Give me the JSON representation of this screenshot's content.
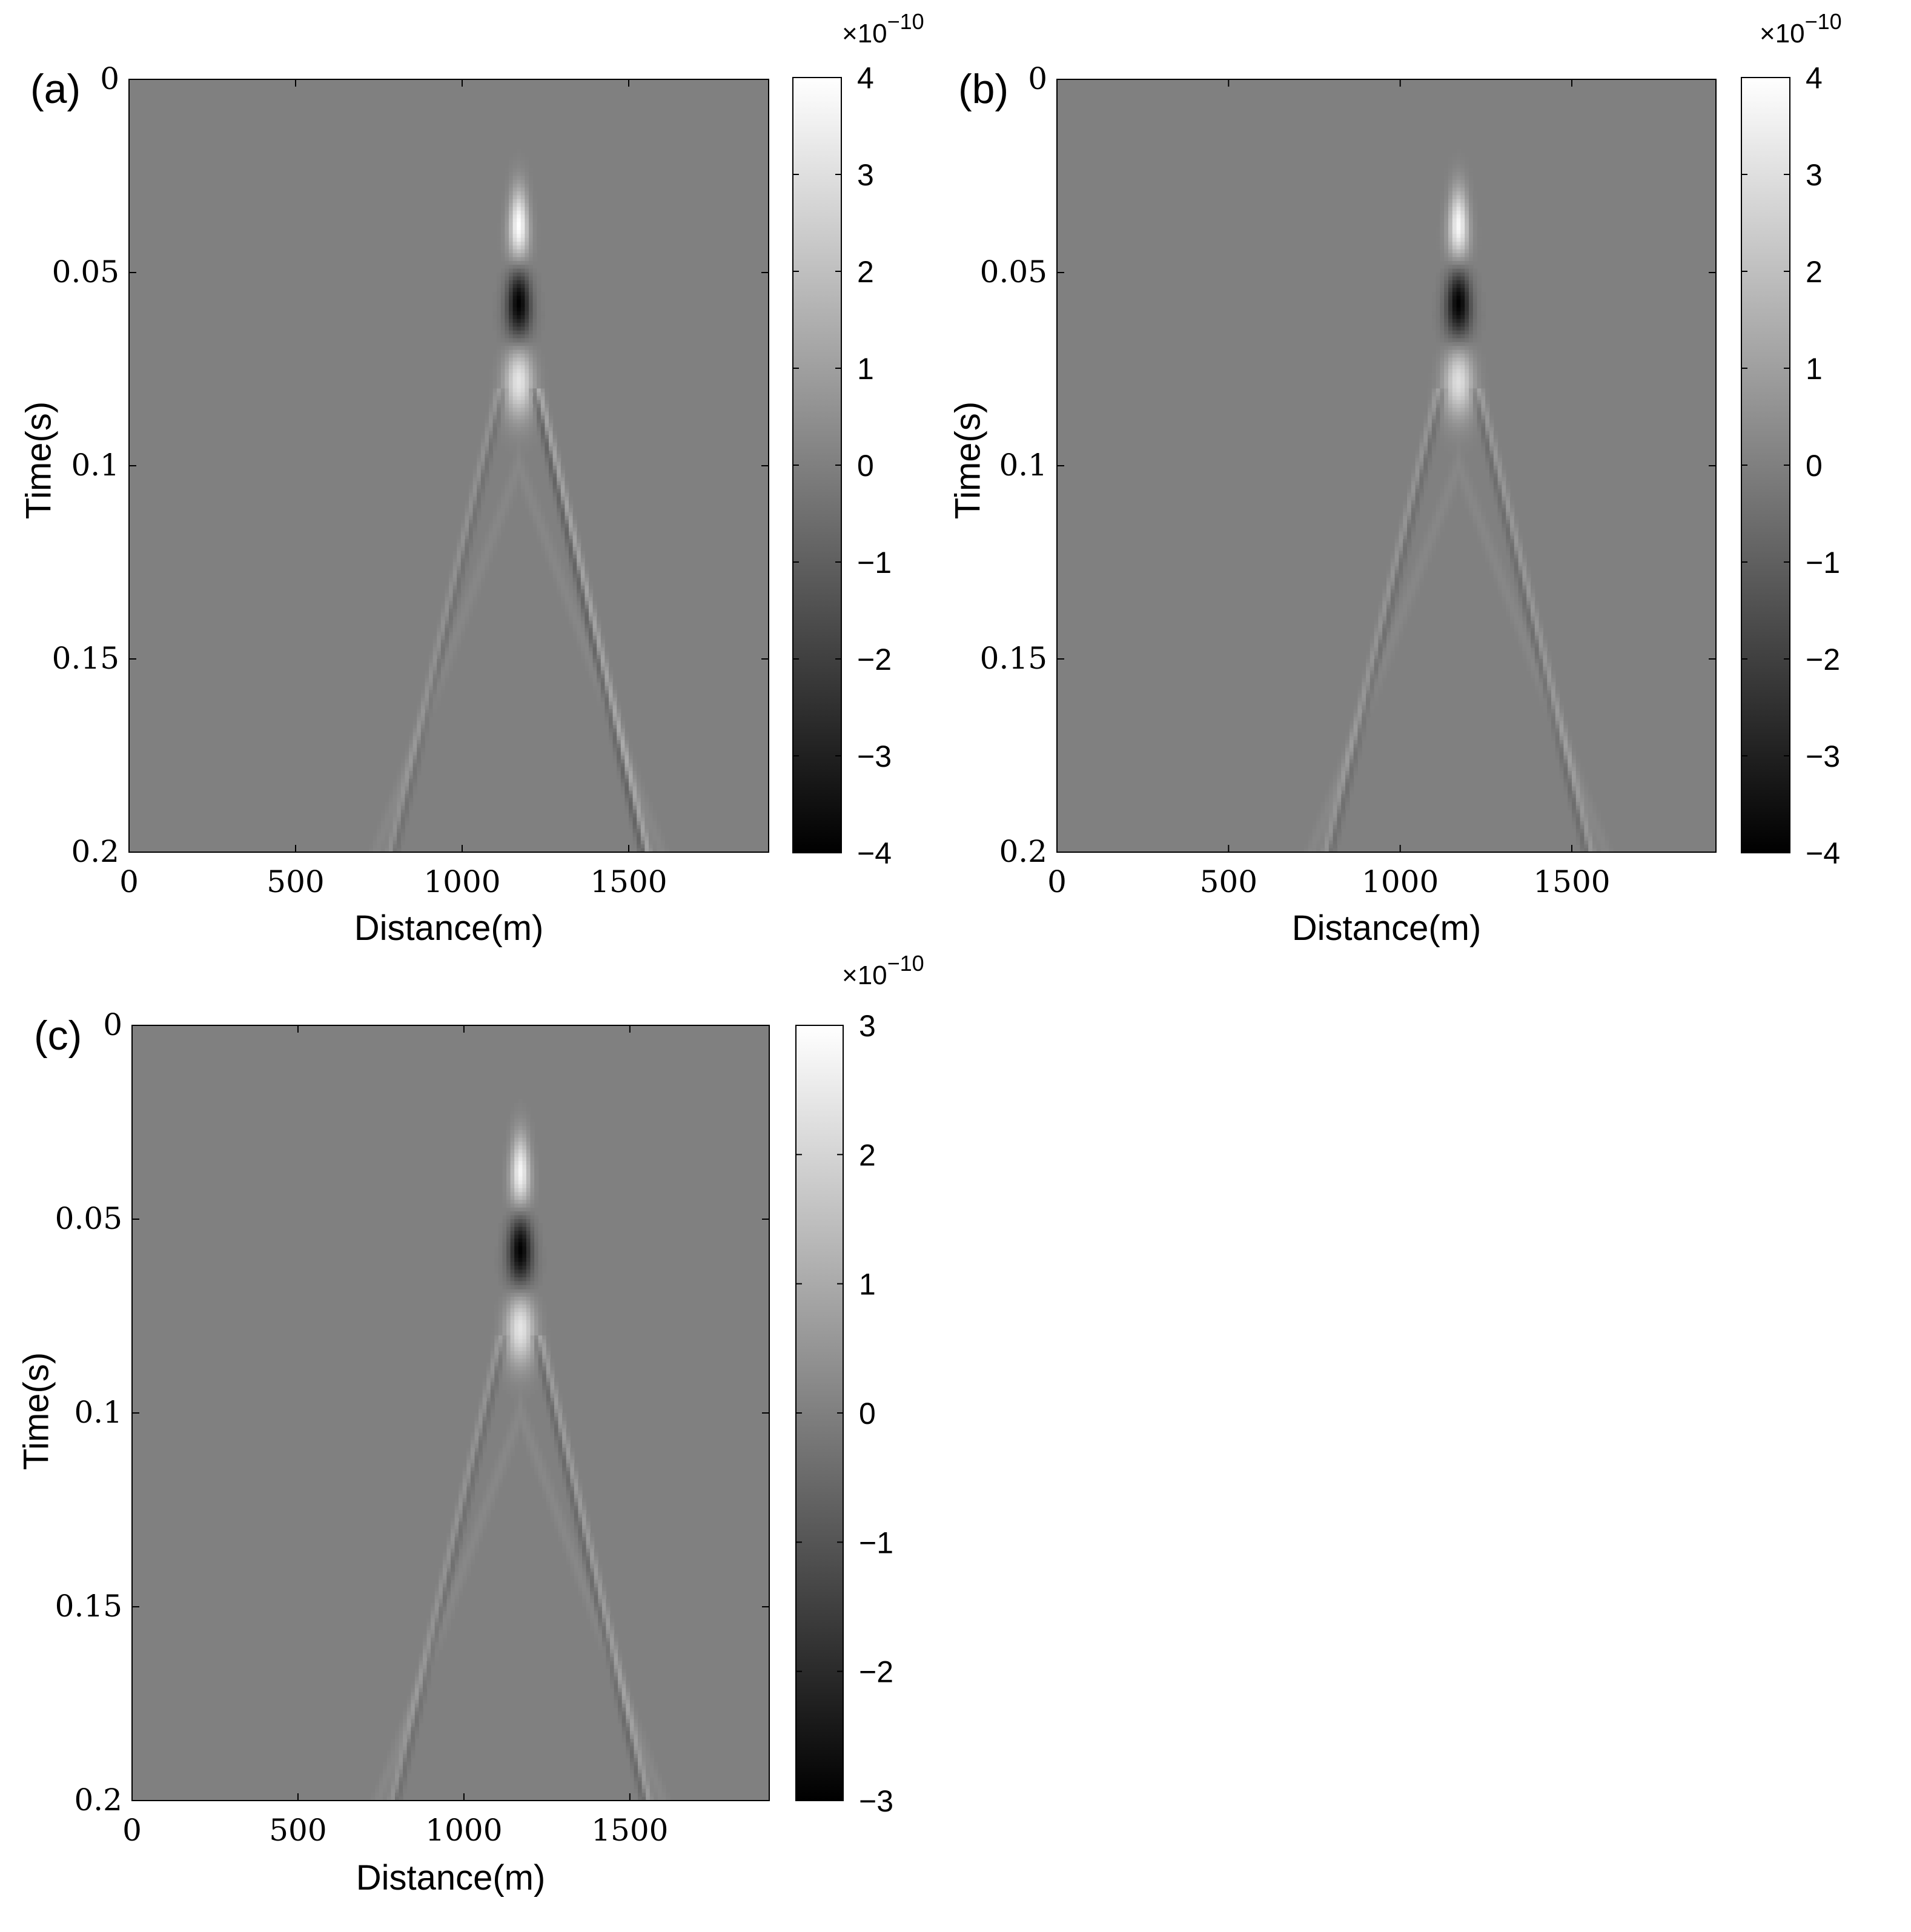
{
  "figure": {
    "panels": [
      {
        "panel_label": "(a)",
        "xlabel": "Distance(m)",
        "ylabel": "Time(s)",
        "colorbar_exponent_base": "×10",
        "colorbar_exponent_power": "−10"
      },
      {
        "panel_label": "(b)",
        "xlabel": "Distance(m)",
        "ylabel": "Time(s)",
        "colorbar_exponent_base": "×10",
        "colorbar_exponent_power": "−10"
      },
      {
        "panel_label": "(c)",
        "xlabel": "Distance(m)",
        "ylabel": "Time(s)",
        "colorbar_exponent_base": "×10",
        "colorbar_exponent_power": "−10"
      }
    ]
  },
  "chart_data": [
    {
      "type": "heatmap",
      "title": "",
      "panel_label": "(a)",
      "xlabel": "Distance(m)",
      "ylabel": "Time(s)",
      "xlim": [
        0,
        1920
      ],
      "ylim": [
        0,
        0.2
      ],
      "y_reversed": true,
      "x_ticks": [
        0,
        500,
        1000,
        1500
      ],
      "x_tick_labels": [
        "0",
        "500",
        "1000",
        "1500"
      ],
      "y_ticks": [
        0,
        0.05,
        0.1,
        0.15,
        0.2
      ],
      "y_tick_labels": [
        "0",
        "0.05",
        "0.1",
        "0.15",
        "0.2"
      ],
      "colormap": "gray",
      "clim": [
        -4,
        4
      ],
      "colorbar_ticks": [
        4,
        3,
        2,
        1,
        0,
        -1,
        -2,
        -3,
        -4
      ],
      "colorbar_tick_labels": [
        "4",
        "3",
        "2",
        "1",
        "0",
        "−1",
        "−2",
        "−3",
        "−4"
      ],
      "colorbar_scale": "×10^−10",
      "features": {
        "source_x": 1170,
        "peaks": [
          {
            "t": 0.038,
            "amp": 4.0
          },
          {
            "t": 0.058,
            "amp": -4.0
          },
          {
            "t": 0.078,
            "amp": 3.2
          }
        ],
        "direct_wave_velocity_m_per_s": 1500,
        "direct_wave_left_amp": 0.6,
        "direct_wave_right_amp": 1.2,
        "reflection_amp": 0.5
      }
    },
    {
      "type": "heatmap",
      "title": "",
      "panel_label": "(b)",
      "xlabel": "Distance(m)",
      "ylabel": "Time(s)",
      "xlim": [
        0,
        1920
      ],
      "ylim": [
        0,
        0.2
      ],
      "y_reversed": true,
      "x_ticks": [
        0,
        500,
        1000,
        1500
      ],
      "x_tick_labels": [
        "0",
        "500",
        "1000",
        "1500"
      ],
      "y_ticks": [
        0,
        0.05,
        0.1,
        0.15,
        0.2
      ],
      "y_tick_labels": [
        "0",
        "0.05",
        "0.1",
        "0.15",
        "0.2"
      ],
      "colormap": "gray",
      "clim": [
        -4,
        4
      ],
      "colorbar_ticks": [
        4,
        3,
        2,
        1,
        0,
        -1,
        -2,
        -3,
        -4
      ],
      "colorbar_tick_labels": [
        "4",
        "3",
        "2",
        "1",
        "0",
        "−1",
        "−2",
        "−3",
        "−4"
      ],
      "colorbar_scale": "×10^−10",
      "features": {
        "source_x": 1170,
        "peaks": [
          {
            "t": 0.038,
            "amp": 3.8
          },
          {
            "t": 0.058,
            "amp": -4.0
          },
          {
            "t": 0.078,
            "amp": 3.0
          }
        ],
        "direct_wave_velocity_m_per_s": 1500,
        "direct_wave_left_amp": 0.7,
        "direct_wave_right_amp": 0.8,
        "reflection_amp": 0.5
      }
    },
    {
      "type": "heatmap",
      "title": "",
      "panel_label": "(c)",
      "xlabel": "Distance(m)",
      "ylabel": "Time(s)",
      "xlim": [
        0,
        1920
      ],
      "ylim": [
        0,
        0.2
      ],
      "y_reversed": true,
      "x_ticks": [
        0,
        500,
        1000,
        1500
      ],
      "x_tick_labels": [
        "0",
        "500",
        "1000",
        "1500"
      ],
      "y_ticks": [
        0,
        0.05,
        0.1,
        0.15,
        0.2
      ],
      "y_tick_labels": [
        "0",
        "0.05",
        "0.1",
        "0.15",
        "0.2"
      ],
      "colormap": "gray",
      "clim": [
        -3,
        3
      ],
      "colorbar_ticks": [
        3,
        2,
        1,
        0,
        -1,
        -2,
        -3
      ],
      "colorbar_tick_labels": [
        "3",
        "2",
        "1",
        "0",
        "−1",
        "−2",
        "−3"
      ],
      "colorbar_scale": "×10^−10",
      "features": {
        "source_x": 1170,
        "peaks": [
          {
            "t": 0.038,
            "amp": 2.8
          },
          {
            "t": 0.058,
            "amp": -3.0
          },
          {
            "t": 0.078,
            "amp": 2.4
          }
        ],
        "direct_wave_velocity_m_per_s": 1500,
        "direct_wave_left_amp": 0.5,
        "direct_wave_right_amp": 0.7,
        "reflection_amp": 0.4
      }
    }
  ]
}
